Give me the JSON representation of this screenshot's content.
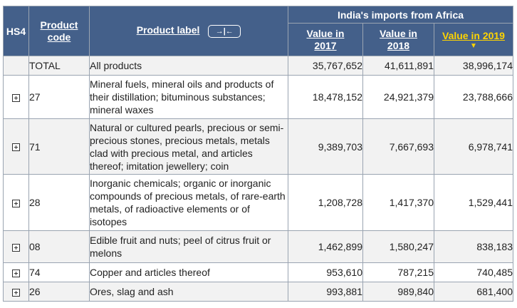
{
  "header": {
    "hs4": "HS4",
    "product_code": "Product code",
    "product_label": "Product label",
    "collapse_icon": "→|←",
    "group_title": "India's imports from Africa",
    "value_2017": "Value in 2017",
    "value_2018": "Value in 2018",
    "value_2019": "Value in 2019",
    "sort_indicator": "▼"
  },
  "rows": [
    {
      "code": "TOTAL",
      "label": "All products",
      "v2017": "35,767,652",
      "v2018": "41,611,891",
      "v2019": "38,996,174"
    },
    {
      "code": "27",
      "label": "Mineral fuels, mineral oils and products of their distillation; bituminous substances; mineral waxes",
      "v2017": "18,478,152",
      "v2018": "24,921,379",
      "v2019": "23,788,666"
    },
    {
      "code": "71",
      "label": "Natural or cultured pearls, precious or semi-precious stones, precious metals, metals clad with precious metal, and articles thereof; imitation jewellery; coin",
      "v2017": "9,389,703",
      "v2018": "7,667,693",
      "v2019": "6,978,741"
    },
    {
      "code": "28",
      "label": "Inorganic chemicals; organic or inorganic compounds of precious metals, of rare-earth metals, of radioactive elements or of isotopes",
      "v2017": "1,208,728",
      "v2018": "1,417,370",
      "v2019": "1,529,441"
    },
    {
      "code": "08",
      "label": "Edible fruit and nuts; peel of citrus fruit or melons",
      "v2017": "1,462,899",
      "v2018": "1,580,247",
      "v2019": "838,183"
    },
    {
      "code": "74",
      "label": "Copper and articles thereof",
      "v2017": "953,610",
      "v2018": "787,215",
      "v2019": "740,485"
    },
    {
      "code": "26",
      "label": "Ores, slag and ash",
      "v2017": "993,881",
      "v2018": "989,840",
      "v2019": "681,400"
    }
  ]
}
